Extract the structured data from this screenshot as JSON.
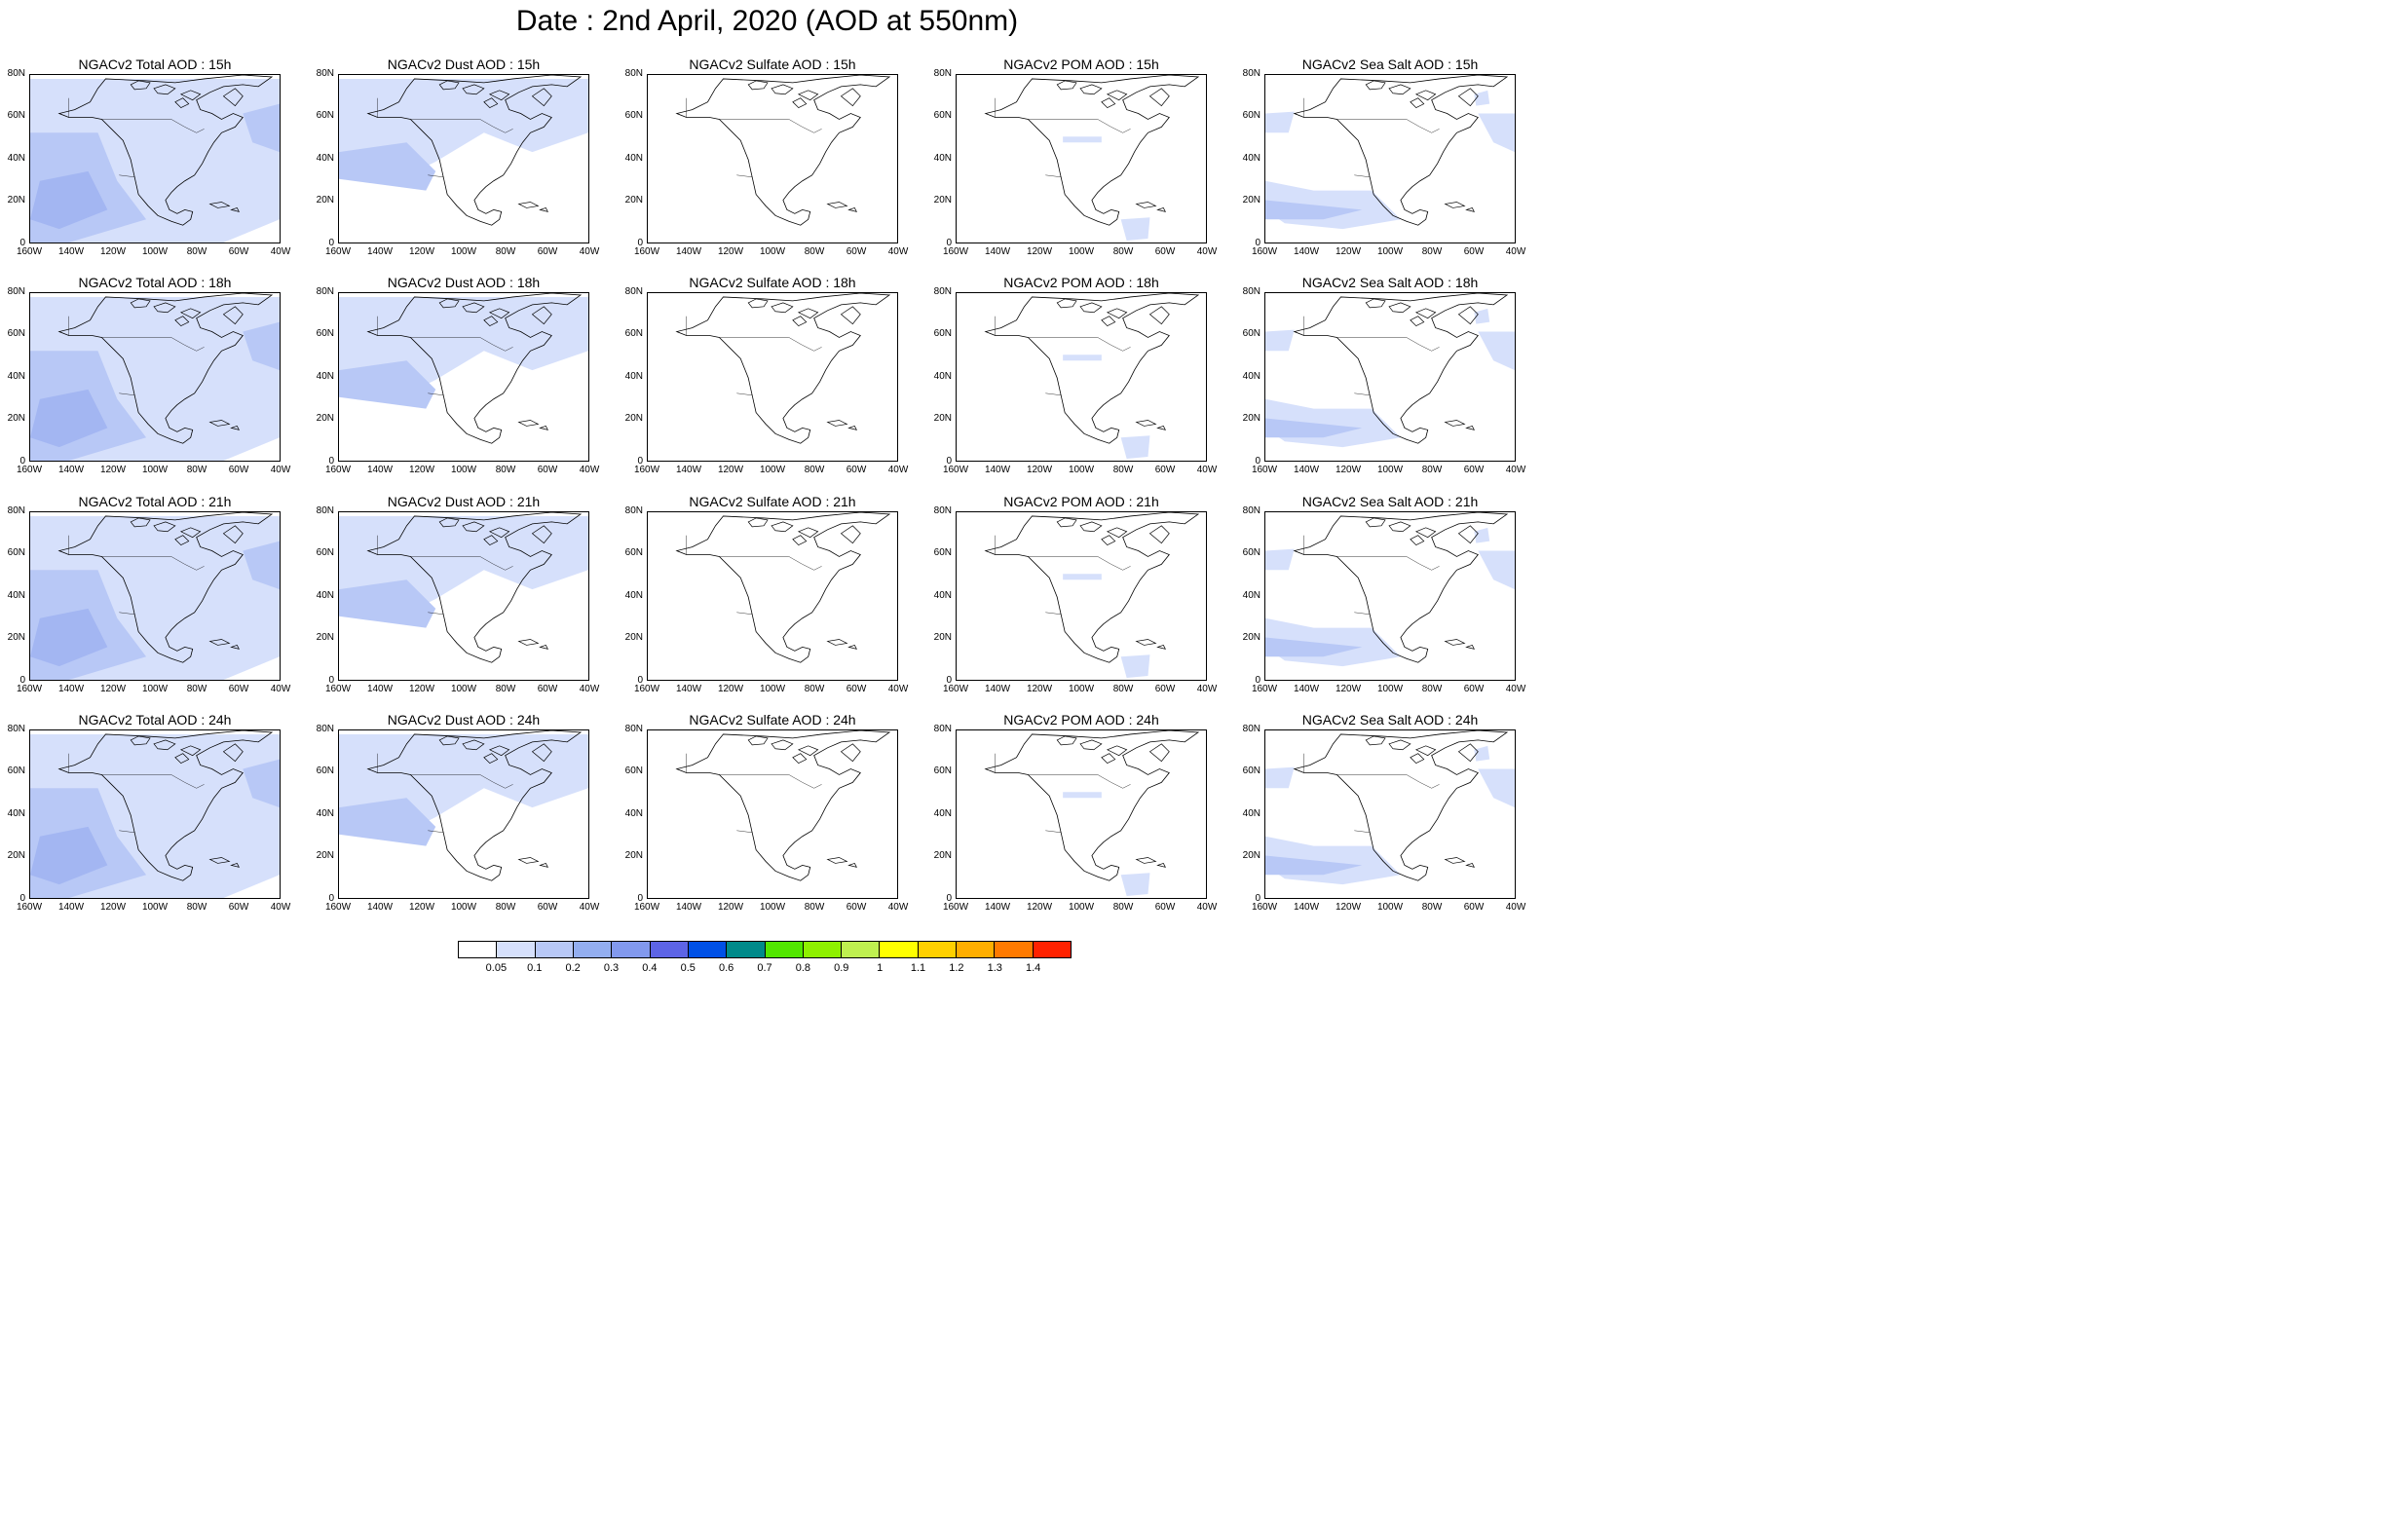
{
  "title": "Date : 2nd April, 2020 (AOD at 550nm)",
  "y_ticks": [
    "80N",
    "60N",
    "40N",
    "20N",
    "0"
  ],
  "x_ticks": [
    "160W",
    "140W",
    "120W",
    "100W",
    "80W",
    "60W",
    "40W"
  ],
  "colors": {
    "land_line": "#000000",
    "aod_light": "#d6e0fb",
    "aod_mid": "#b8c8f6",
    "aod_strong": "#a3b6f2"
  },
  "panels": [
    [
      "NGACv2 Total AOD : 15h",
      "NGACv2 Dust AOD : 15h",
      "NGACv2 Sulfate AOD : 15h",
      "NGACv2 POM AOD : 15h",
      "NGACv2 Sea Salt AOD : 15h"
    ],
    [
      "NGACv2 Total AOD : 18h",
      "NGACv2 Dust AOD : 18h",
      "NGACv2 Sulfate AOD : 18h",
      "NGACv2 POM AOD : 18h",
      "NGACv2 Sea Salt AOD : 18h"
    ],
    [
      "NGACv2 Total AOD : 21h",
      "NGACv2 Dust AOD : 21h",
      "NGACv2 Sulfate AOD : 21h",
      "NGACv2 POM AOD : 21h",
      "NGACv2 Sea Salt AOD : 21h"
    ],
    [
      "NGACv2 Total AOD : 24h",
      "NGACv2 Dust AOD : 24h",
      "NGACv2 Sulfate AOD : 24h",
      "NGACv2 POM AOD : 24h",
      "NGACv2 Sea Salt  AOD : 24h"
    ]
  ],
  "colorbar": {
    "colors": [
      "#ffffff",
      "#d6e0fb",
      "#b8c8f6",
      "#93aef0",
      "#8299ee",
      "#5d64e6",
      "#0050e6",
      "#008a8a",
      "#52e600",
      "#8ef000",
      "#bff050",
      "#ffff00",
      "#ffd000",
      "#ffae00",
      "#ff7a00",
      "#ff2200"
    ],
    "labels": [
      "0.05",
      "0.1",
      "0.2",
      "0.3",
      "0.4",
      "0.5",
      "0.6",
      "0.7",
      "0.8",
      "0.9",
      "1",
      "1.1",
      "1.2",
      "1.3",
      "1.4"
    ]
  }
}
